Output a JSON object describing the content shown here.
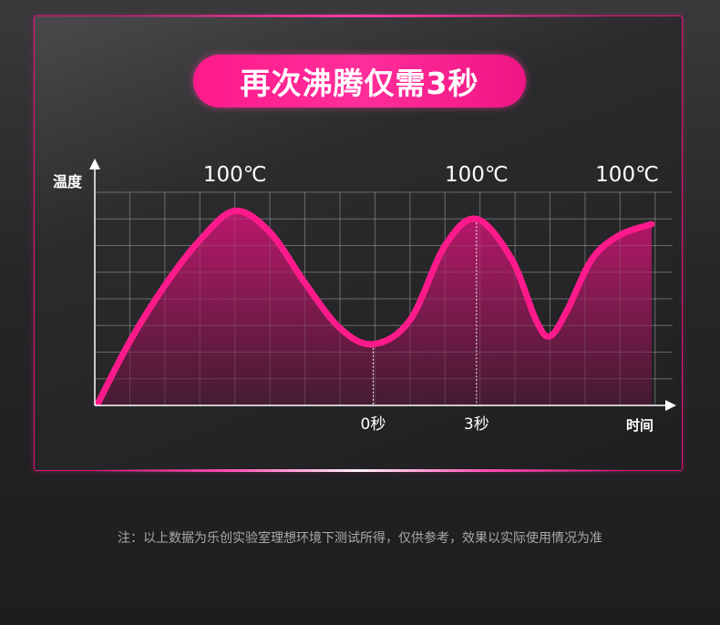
{
  "title": "再次沸腾仅需3秒",
  "note": "注：以上数据为乐创实验室理想环境下测试所得，仅供参考，效果以实际使用情况为准",
  "colors": {
    "accent": "#ff1a8c",
    "panel_border": "#e0137f",
    "grid": "#6a6a6c"
  },
  "chart_data": {
    "type": "area",
    "ylabel": "温度",
    "xlabel": "时间",
    "xlim": [
      0,
      16.5
    ],
    "ylim": [
      0,
      8
    ],
    "grid": true,
    "series": [
      {
        "x": [
          0.1,
          1,
          2,
          3,
          4,
          5,
          6,
          7,
          7.95,
          9,
          10,
          10.9,
          11.9,
          12.6,
          13,
          13.5,
          14.2,
          15,
          15.9
        ],
        "y": [
          0.1,
          2.4,
          4.5,
          6.2,
          7.3,
          6.5,
          4.6,
          2.9,
          2.3,
          3.2,
          6.0,
          7.0,
          5.5,
          3.2,
          2.6,
          3.6,
          5.5,
          6.4,
          6.8
        ]
      }
    ],
    "markers": [
      {
        "x": 7.95,
        "label": "0秒"
      },
      {
        "x": 10.9,
        "label": "3秒"
      }
    ],
    "annotations": [
      {
        "x": 4,
        "label": "100℃"
      },
      {
        "x": 10.9,
        "label": "100℃"
      },
      {
        "x": 15.2,
        "label": "100℃"
      }
    ]
  }
}
